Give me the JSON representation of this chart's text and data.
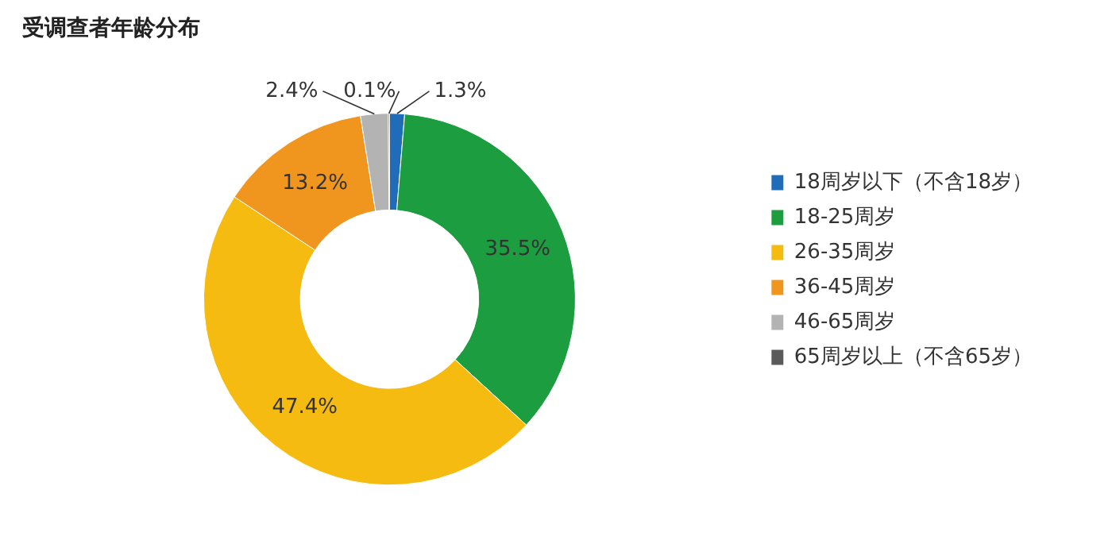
{
  "chart_data": {
    "type": "donut",
    "title": "受调查者年龄分布",
    "categories": [
      "18周岁以下（不含18岁）",
      "18-25周岁",
      "26-35周岁",
      "36-45周岁",
      "46-65周岁",
      "65周岁以上（不含65岁）"
    ],
    "values": [
      1.3,
      35.5,
      47.4,
      13.2,
      2.4,
      0.1
    ],
    "value_labels": [
      "1.3%",
      "35.5%",
      "47.4%",
      "13.2%",
      "2.4%",
      "0.1%"
    ],
    "colors": [
      "#1f6db8",
      "#1c9e40",
      "#f5bb10",
      "#f0961e",
      "#b3b3b3",
      "#5a5a5a"
    ],
    "legend": "right"
  }
}
